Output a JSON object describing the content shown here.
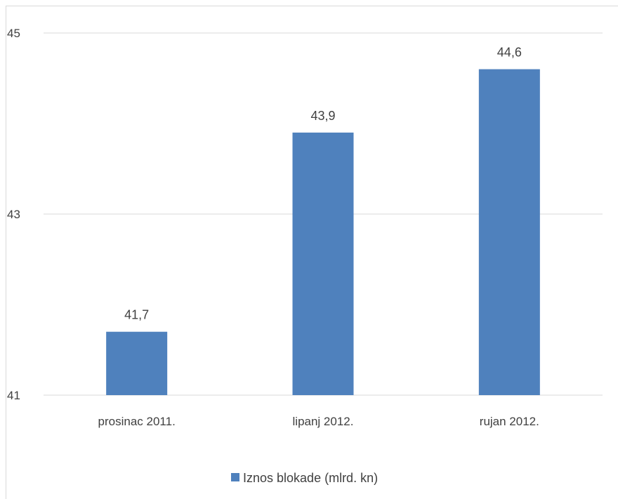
{
  "chart_data": {
    "type": "bar",
    "categories": [
      "prosinac 2011.",
      "lipanj 2012.",
      "rujan 2012."
    ],
    "series": [
      {
        "name": "Iznos blokade (mlrd. kn)",
        "values": [
          41.7,
          43.9,
          44.6
        ],
        "color": "#4f81bd"
      }
    ],
    "data_labels": [
      "41,7",
      "43,9",
      "44,6"
    ],
    "y_ticks": [
      41,
      43,
      45
    ],
    "ylim": [
      41,
      45
    ],
    "grid": true,
    "legend_position": "bottom",
    "title": "",
    "xlabel": "",
    "ylabel": ""
  }
}
